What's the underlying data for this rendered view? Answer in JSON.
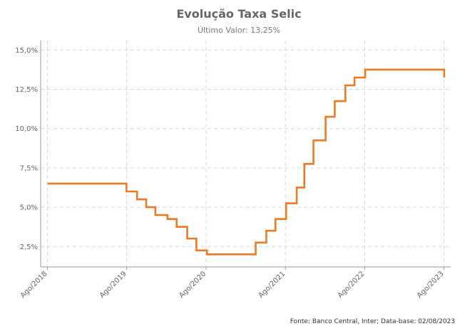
{
  "chart_data": {
    "type": "line",
    "title": "Evolução Taxa Selic",
    "subtitle": "Último Valor: 13,25%",
    "source": "Fonte: Banco Central, Inter; Data-base: 02/08/2023",
    "x_ticks": [
      "Ago/2018",
      "Ago/2019",
      "Ago/2020",
      "Ago/2021",
      "Ago/2022",
      "Ago/2023"
    ],
    "y_ticks": [
      "2,5%",
      "5,0%",
      "7,5%",
      "10,0%",
      "12,5%",
      "15,0%"
    ],
    "y_tick_values": [
      2.5,
      5.0,
      7.5,
      10.0,
      12.5,
      15.0
    ],
    "ylim": [
      1.2,
      15.6
    ],
    "xlim": [
      "2018-07-01",
      "2023-09-01"
    ],
    "grid": true,
    "colors": {
      "line": "#f07a24"
    },
    "series": [
      {
        "step": true,
        "x": [
          "2018-08-02",
          "2019-07-31",
          "2019-09-18",
          "2019-10-30",
          "2019-12-11",
          "2020-02-05",
          "2020-03-18",
          "2020-05-06",
          "2020-06-17",
          "2020-08-05",
          "2021-03-17",
          "2021-05-05",
          "2021-06-16",
          "2021-08-04",
          "2021-09-22",
          "2021-10-27",
          "2021-12-08",
          "2022-02-02",
          "2022-03-16",
          "2022-05-04",
          "2022-06-15",
          "2022-08-03",
          "2023-08-02"
        ],
        "values": [
          6.5,
          6.0,
          5.5,
          5.0,
          4.5,
          4.25,
          3.75,
          3.0,
          2.25,
          2.0,
          2.75,
          3.5,
          4.25,
          5.25,
          6.25,
          7.75,
          9.25,
          10.75,
          11.75,
          12.75,
          13.25,
          13.75,
          13.25
        ]
      }
    ]
  }
}
